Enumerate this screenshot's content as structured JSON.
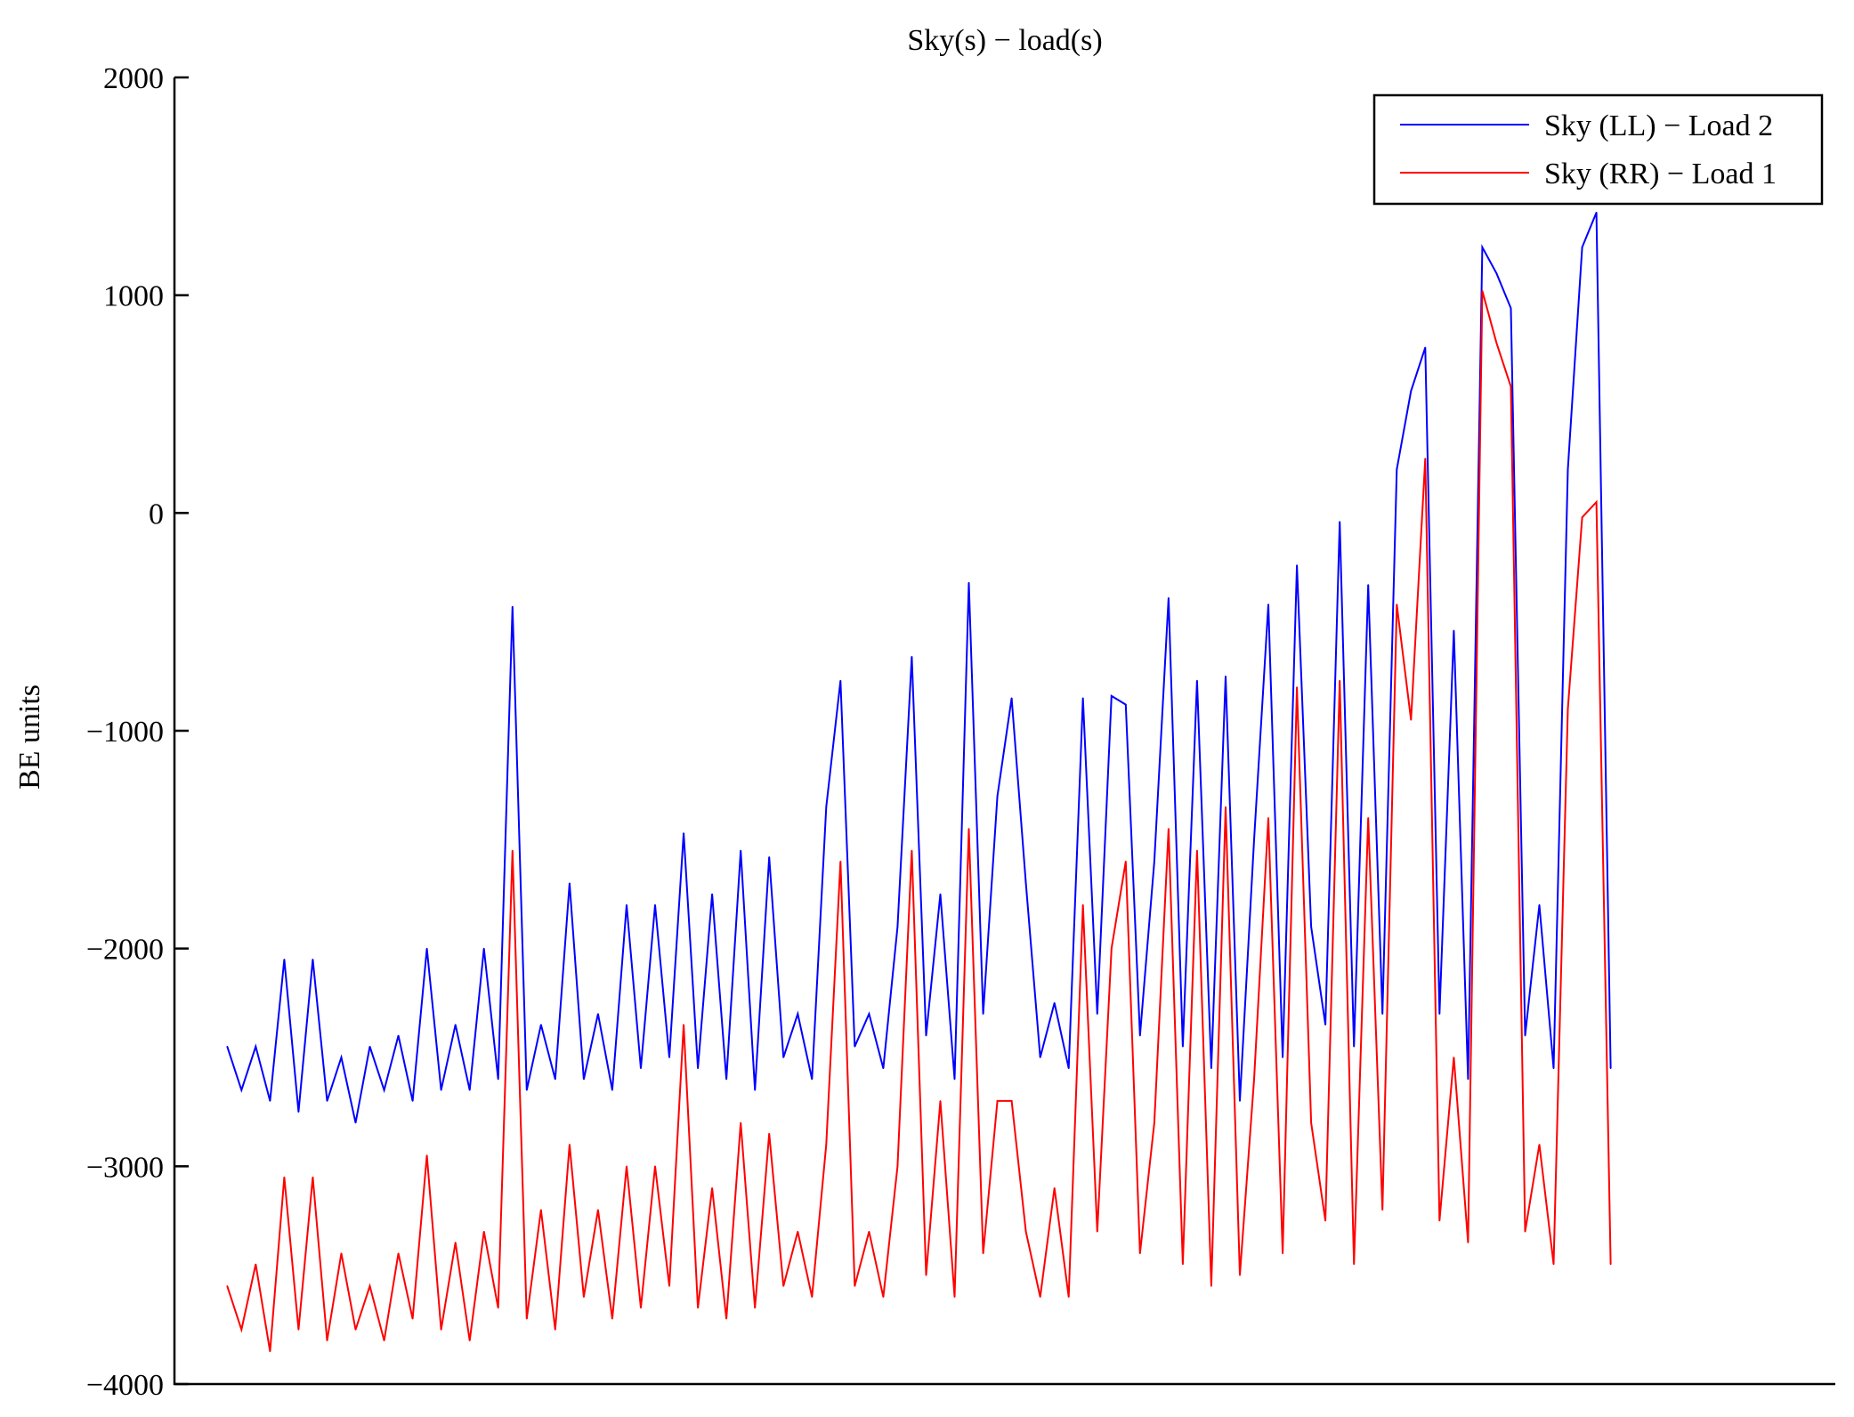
{
  "chart_data": {
    "type": "line",
    "title": "Sky(s) − load(s)",
    "xlabel": "",
    "ylabel": "BE units",
    "ylim": [
      -4000,
      2000
    ],
    "xlim": [
      -3.7,
      112.75
    ],
    "yticks": [
      2000,
      1000,
      0,
      -1000,
      -2000,
      -3000,
      -4000
    ],
    "ytick_labels": [
      "2000",
      "1000",
      "0",
      "−1000",
      "−2000",
      "−3000",
      "−4000"
    ],
    "grid": false,
    "legend_position": "top-right",
    "series": [
      {
        "name": "Sky (LL) − Load 2",
        "color": "#0000ff",
        "values": [
          -2450,
          -2650,
          -2450,
          -2700,
          -2050,
          -2750,
          -2050,
          -2700,
          -2500,
          -2800,
          -2450,
          -2650,
          -2400,
          -2700,
          -2000,
          -2650,
          -2350,
          -2650,
          -2000,
          -2600,
          -430,
          -2650,
          -2350,
          -2600,
          -1700,
          -2600,
          -2300,
          -2650,
          -1800,
          -2550,
          -1800,
          -2500,
          -1470,
          -2550,
          -1750,
          -2600,
          -1550,
          -2650,
          -1580,
          -2500,
          -2300,
          -2600,
          -1350,
          -770,
          -2450,
          -2300,
          -2550,
          -1900,
          -660,
          -2400,
          -1750,
          -2600,
          -320,
          -2300,
          -1300,
          -850,
          -1700,
          -2500,
          -2250,
          -2550,
          -850,
          -2300,
          -840,
          -880,
          -2400,
          -1600,
          -390,
          -2450,
          -770,
          -2550,
          -750,
          -2700,
          -1500,
          -420,
          -2500,
          -240,
          -1900,
          -2350,
          -40,
          -2450,
          -330,
          -2300,
          200,
          560,
          760,
          -2300,
          -540,
          -2600,
          1220,
          1100,
          940,
          -2400,
          -1800,
          -2550,
          200,
          1220,
          1380,
          -2550
        ]
      },
      {
        "name": "Sky (RR) − Load 1",
        "color": "#ff0000",
        "values": [
          -3550,
          -3750,
          -3450,
          -3850,
          -3050,
          -3750,
          -3050,
          -3800,
          -3400,
          -3750,
          -3550,
          -3800,
          -3400,
          -3700,
          -2950,
          -3750,
          -3350,
          -3800,
          -3300,
          -3650,
          -1550,
          -3700,
          -3200,
          -3750,
          -2900,
          -3600,
          -3200,
          -3700,
          -3000,
          -3650,
          -3000,
          -3550,
          -2350,
          -3650,
          -3100,
          -3700,
          -2800,
          -3650,
          -2850,
          -3550,
          -3300,
          -3600,
          -2900,
          -1600,
          -3550,
          -3300,
          -3600,
          -3000,
          -1550,
          -3500,
          -2700,
          -3600,
          -1450,
          -3400,
          -2700,
          -2700,
          -3300,
          -3600,
          -3100,
          -3600,
          -1800,
          -3300,
          -2000,
          -1600,
          -3400,
          -2800,
          -1450,
          -3450,
          -1550,
          -3550,
          -1350,
          -3500,
          -2600,
          -1400,
          -3400,
          -800,
          -2800,
          -3250,
          -770,
          -3450,
          -1400,
          -3200,
          -420,
          -950,
          250,
          -3250,
          -2500,
          -3350,
          1020,
          780,
          580,
          -3300,
          -2900,
          -3450,
          -900,
          -20,
          50,
          -3450
        ]
      }
    ]
  }
}
